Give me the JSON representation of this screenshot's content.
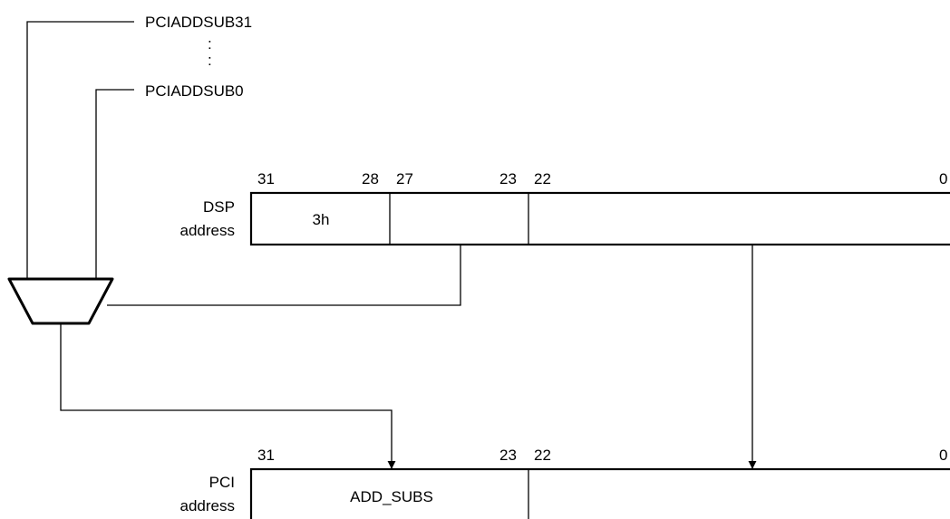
{
  "mux_inputs": {
    "top": "PCIADDSUB31",
    "ellipsis": ":",
    "bottom": "PCIADDSUB0"
  },
  "dsp_register": {
    "label_line1": "DSP",
    "label_line2": "address",
    "bits": {
      "b31": "31",
      "b28": "28",
      "b27": "27",
      "b23": "23",
      "b22": "22",
      "b0": "0"
    },
    "field_upper": "3h"
  },
  "pci_register": {
    "label_line1": "PCI",
    "label_line2": "address",
    "bits": {
      "b31": "31",
      "b23": "23",
      "b22": "22",
      "b0": "0"
    },
    "field_upper": "ADD_SUBS"
  }
}
